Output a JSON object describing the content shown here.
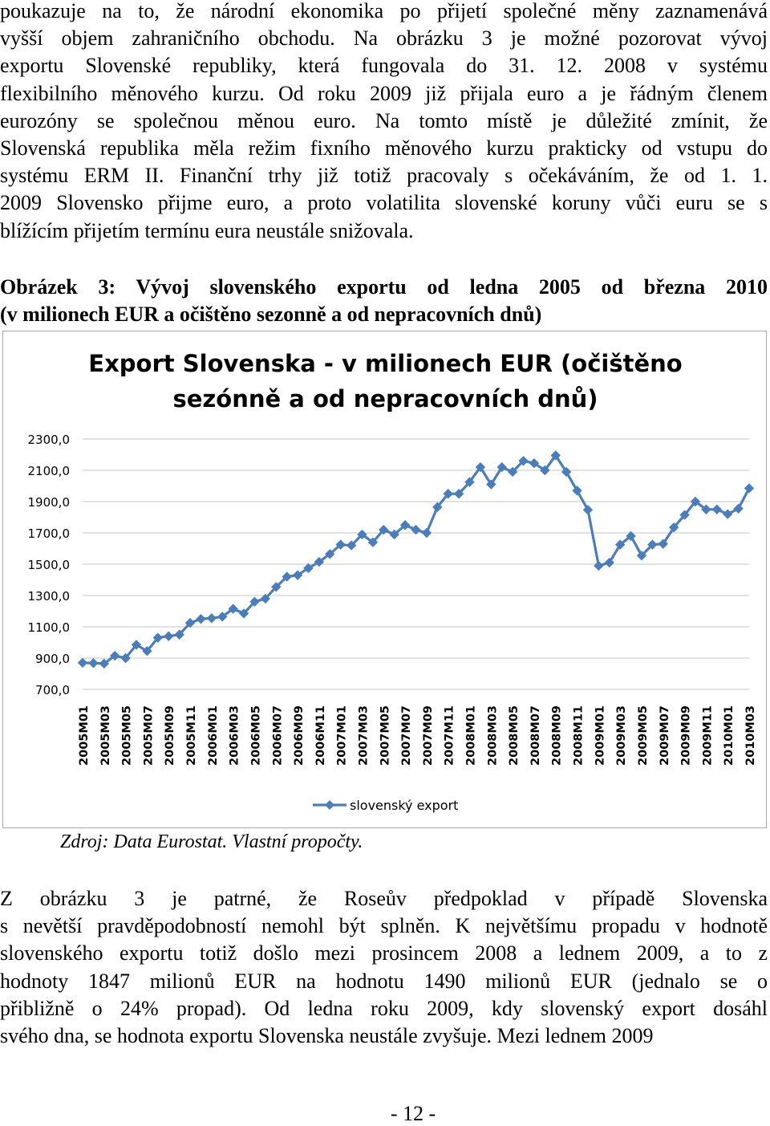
{
  "paragraph1": [
    "poukazuje na to, že národní ekonomika po přijetí společné měny zaznamenává",
    "vyšší objem zahraničního obchodu. Na obrázku 3 je možné pozorovat vývoj",
    "exportu Slovenské republiky, která fungovala do 31. 12. 2008 v systému",
    "flexibilního měnového kurzu. Od roku 2009 již přijala euro a je řádným členem",
    "eurozóny se společnou měnou euro. Na tomto místě je důležité zmínit, že",
    "Slovenská republika měla režim fixního měnového kurzu prakticky od vstupu do",
    "systému ERM II. Finanční trhy již totiž pracovaly s očekáváním, že od 1. 1.",
    "2009 Slovensko přijme euro, a proto volatilita slovenské koruny vůči euru se s",
    "blížícím přijetím termínu eura neustále snižovala."
  ],
  "caption": [
    "Obrázek 3: Vývoj slovenského exportu od ledna 2005 od března 2010",
    "(v milionech EUR a očištěno sezonně a od nepracovních dnů)"
  ],
  "source": "Zdroj: Data Eurostat. Vlastní propočty.",
  "paragraph2": [
    "     Z obrázku 3 je patrné, že Roseův předpoklad v případě Slovenska",
    "s nevětší pravděpodobností nemohl být splněn. K největšímu propadu v hodnotě",
    "slovenského exportu totiž došlo mezi prosincem 2008 a lednem 2009, a to z",
    "hodnoty 1847 milionů EUR na hodnotu 1490 milionů EUR (jednalo se o",
    "přibližně o 24% propad). Od ledna roku 2009, kdy slovenský export dosáhl",
    "svého dna, se hodnota exportu Slovenska neustále zvyšuje. Mezi lednem 2009"
  ],
  "page_number": "- 12 -",
  "chart_data": {
    "type": "line",
    "title_lines": [
      "Export Slovenska - v milionech EUR (očištěno",
      "sezónně a od nepracovních dnů)"
    ],
    "ylim": [
      700,
      2300
    ],
    "yticks": [
      "700,0",
      "900,0",
      "1100,0",
      "1300,0",
      "1500,0",
      "1700,0",
      "1900,0",
      "2100,0",
      "2300,0"
    ],
    "grid": true,
    "legend_position": "bottom",
    "series_color": "#4a7ebb",
    "x": [
      "2005M01",
      "2005M02",
      "2005M03",
      "2005M04",
      "2005M05",
      "2005M06",
      "2005M07",
      "2005M08",
      "2005M09",
      "2005M10",
      "2005M11",
      "2005M12",
      "2006M01",
      "2006M02",
      "2006M03",
      "2006M04",
      "2006M05",
      "2006M06",
      "2006M07",
      "2006M08",
      "2006M09",
      "2006M10",
      "2006M11",
      "2006M12",
      "2007M01",
      "2007M02",
      "2007M03",
      "2007M04",
      "2007M05",
      "2007M06",
      "2007M07",
      "2007M08",
      "2007M09",
      "2007M10",
      "2007M11",
      "2007M12",
      "2008M01",
      "2008M02",
      "2008M03",
      "2008M04",
      "2008M05",
      "2008M06",
      "2008M07",
      "2008M08",
      "2008M09",
      "2008M10",
      "2008M11",
      "2008M12",
      "2009M01",
      "2009M02",
      "2009M03",
      "2009M04",
      "2009M05",
      "2009M06",
      "2009M07",
      "2009M08",
      "2009M09",
      "2009M10",
      "2009M11",
      "2009M12",
      "2010M01",
      "2010M02",
      "2010M03"
    ],
    "xtick_labels": [
      "2005M01",
      "2005M03",
      "2005M05",
      "2005M07",
      "2005M09",
      "2005M11",
      "2006M01",
      "2006M03",
      "2006M05",
      "2006M07",
      "2006M09",
      "2006M11",
      "2007M01",
      "2007M03",
      "2007M05",
      "2007M07",
      "2007M09",
      "2007M11",
      "2008M01",
      "2008M03",
      "2008M05",
      "2008M07",
      "2008M09",
      "2008M11",
      "2009M01",
      "2009M03",
      "2009M05",
      "2009M07",
      "2009M09",
      "2009M11",
      "2010M01",
      "2010M03"
    ],
    "series": [
      {
        "name": "slovenský export",
        "values": [
          870,
          868,
          865,
          915,
          900,
          985,
          945,
          1030,
          1040,
          1050,
          1125,
          1150,
          1155,
          1165,
          1215,
          1185,
          1260,
          1280,
          1355,
          1420,
          1430,
          1475,
          1515,
          1565,
          1625,
          1620,
          1690,
          1640,
          1720,
          1690,
          1750,
          1720,
          1700,
          1865,
          1950,
          1950,
          2025,
          2120,
          2010,
          2120,
          2090,
          2160,
          2145,
          2100,
          2195,
          2090,
          1970,
          1847,
          1490,
          1510,
          1625,
          1680,
          1555,
          1625,
          1630,
          1735,
          1815,
          1900,
          1850,
          1850,
          1820,
          1855,
          1985
        ]
      }
    ]
  }
}
